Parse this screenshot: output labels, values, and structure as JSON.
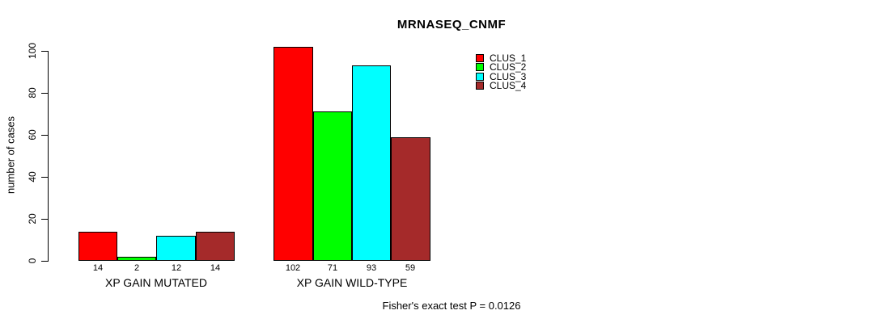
{
  "chart_data": {
    "type": "bar",
    "grouped": true,
    "title": "MRNASEQ_CNMF",
    "xlabel": "",
    "ylabel": "number of cases",
    "categories": [
      "XP GAIN MUTATED",
      "XP GAIN WILD-TYPE"
    ],
    "series": [
      {
        "name": "CLUS_1",
        "color": "#FF0000",
        "values": [
          14,
          102
        ]
      },
      {
        "name": "CLUS_2",
        "color": "#00FF00",
        "values": [
          2,
          71
        ]
      },
      {
        "name": "CLUS_3",
        "color": "#00FFFF",
        "values": [
          12,
          93
        ]
      },
      {
        "name": "CLUS_4",
        "color": "#A52A2A",
        "values": [
          14,
          59
        ]
      }
    ],
    "bar_value_labels": [
      [
        14,
        2,
        12,
        14
      ],
      [
        102,
        71,
        93,
        59
      ]
    ],
    "yticks": [
      0,
      20,
      40,
      60,
      80,
      100
    ],
    "ylim": [
      0,
      102
    ],
    "grid": false,
    "legend_position": "top-right",
    "bar_border_color": "#000000",
    "footnote": "Fisher's exact test P = 0.0126"
  }
}
